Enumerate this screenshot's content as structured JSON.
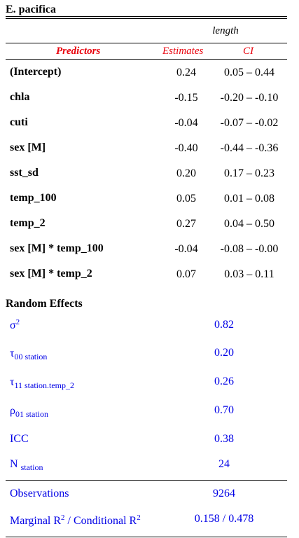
{
  "caption": "E. pacifica",
  "dependent_variable": "length",
  "headers": {
    "predictors": "Predictors",
    "estimates": "Estimates",
    "ci": "CI"
  },
  "rows": [
    {
      "predictor": "(Intercept)",
      "estimate": "0.24",
      "ci": "0.05 – 0.44"
    },
    {
      "predictor": "chla",
      "estimate": "-0.15",
      "ci": "-0.20 – -0.10"
    },
    {
      "predictor": "cuti",
      "estimate": "-0.04",
      "ci": "-0.07 – -0.02"
    },
    {
      "predictor": "sex [M]",
      "estimate": "-0.40",
      "ci": "-0.44 – -0.36"
    },
    {
      "predictor": "sst_sd",
      "estimate": "0.20",
      "ci": "0.17 – 0.23"
    },
    {
      "predictor": "temp_100",
      "estimate": "0.05",
      "ci": "0.01 – 0.08"
    },
    {
      "predictor": "temp_2",
      "estimate": "0.27",
      "ci": "0.04 – 0.50"
    },
    {
      "predictor": "sex [M] * temp_100",
      "estimate": "-0.04",
      "ci": "-0.08 – -0.00"
    },
    {
      "predictor": "sex [M] * temp_2",
      "estimate": "0.07",
      "ci": "0.03 – 0.11"
    }
  ],
  "random_effects": {
    "title": "Random Effects",
    "sigma2": {
      "symbol": "σ",
      "sup": "2",
      "value": "0.82"
    },
    "tau00": {
      "symbol": "τ",
      "sub": "00 station",
      "value": "0.20"
    },
    "tau11": {
      "symbol": "τ",
      "sub": "11 station.temp_2",
      "value": "0.26"
    },
    "rho01": {
      "symbol": "ρ",
      "sub": "01 station",
      "value": "0.70"
    },
    "icc": {
      "label": "ICC",
      "value": "0.38"
    },
    "n": {
      "label": "N",
      "sub": "station",
      "value": "24"
    }
  },
  "observations": {
    "label": "Observations",
    "value": "9264"
  },
  "r2": {
    "marginal": "Marginal R",
    "sep": " / Conditional R",
    "sup": "2",
    "value": "0.158 / 0.478"
  }
}
